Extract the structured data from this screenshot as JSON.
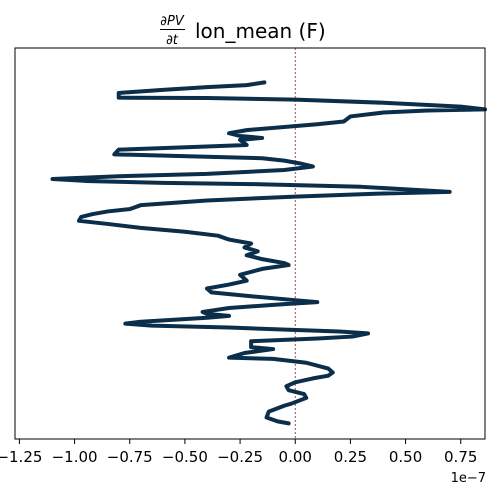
{
  "chart_data": {
    "type": "line",
    "title": {
      "fraction_numerator": "∂PV",
      "fraction_denominator": "∂t",
      "text": "lon_mean (F)"
    },
    "xlabel": "",
    "ylabel": "",
    "x_offset_label": "1e−7",
    "xlim": [
      -1.27,
      0.86
    ],
    "ylim": [
      0,
      1
    ],
    "x_ticks": [
      -1.25,
      -1.0,
      -0.75,
      -0.5,
      -0.25,
      0.0,
      0.25,
      0.5,
      0.75
    ],
    "x_tick_labels": [
      "−1.25",
      "−1.00",
      "−0.75",
      "−0.50",
      "−0.25",
      "0.00",
      "0.25",
      "0.50",
      "0.75"
    ],
    "y_ticks_visible": false,
    "reference_line": {
      "x": 0.0,
      "color": "#8b1a3c",
      "style": "dashed"
    },
    "series": [
      {
        "color": "#0b2e4a",
        "points": [
          {
            "x": -0.03,
            "y": 0.04
          },
          {
            "x": -0.08,
            "y": 0.045
          },
          {
            "x": -0.13,
            "y": 0.055
          },
          {
            "x": -0.12,
            "y": 0.07
          },
          {
            "x": -0.05,
            "y": 0.085
          },
          {
            "x": -0.02,
            "y": 0.09
          },
          {
            "x": 0.05,
            "y": 0.105
          },
          {
            "x": 0.04,
            "y": 0.115
          },
          {
            "x": -0.03,
            "y": 0.125
          },
          {
            "x": -0.04,
            "y": 0.135
          },
          {
            "x": 0.0,
            "y": 0.145
          },
          {
            "x": 0.08,
            "y": 0.155
          },
          {
            "x": 0.15,
            "y": 0.162
          },
          {
            "x": 0.17,
            "y": 0.17
          },
          {
            "x": 0.15,
            "y": 0.18
          },
          {
            "x": 0.05,
            "y": 0.195
          },
          {
            "x": -0.1,
            "y": 0.205
          },
          {
            "x": -0.3,
            "y": 0.208
          },
          {
            "x": -0.23,
            "y": 0.22
          },
          {
            "x": -0.1,
            "y": 0.23
          },
          {
            "x": -0.2,
            "y": 0.235
          },
          {
            "x": -0.2,
            "y": 0.25
          },
          {
            "x": 0.1,
            "y": 0.257
          },
          {
            "x": 0.26,
            "y": 0.262
          },
          {
            "x": 0.33,
            "y": 0.27
          },
          {
            "x": 0.2,
            "y": 0.275
          },
          {
            "x": -0.3,
            "y": 0.285
          },
          {
            "x": -0.65,
            "y": 0.29
          },
          {
            "x": -0.77,
            "y": 0.295
          },
          {
            "x": -0.7,
            "y": 0.3
          },
          {
            "x": -0.55,
            "y": 0.305
          },
          {
            "x": -0.4,
            "y": 0.31
          },
          {
            "x": -0.3,
            "y": 0.315
          },
          {
            "x": -0.4,
            "y": 0.32
          },
          {
            "x": -0.42,
            "y": 0.325
          },
          {
            "x": -0.3,
            "y": 0.335
          },
          {
            "x": -0.05,
            "y": 0.345
          },
          {
            "x": 0.1,
            "y": 0.35
          },
          {
            "x": 0.0,
            "y": 0.355
          },
          {
            "x": -0.2,
            "y": 0.365
          },
          {
            "x": -0.38,
            "y": 0.375
          },
          {
            "x": -0.4,
            "y": 0.385
          },
          {
            "x": -0.3,
            "y": 0.395
          },
          {
            "x": -0.22,
            "y": 0.405
          },
          {
            "x": -0.25,
            "y": 0.42
          },
          {
            "x": -0.15,
            "y": 0.435
          },
          {
            "x": -0.03,
            "y": 0.445
          },
          {
            "x": -0.05,
            "y": 0.45
          },
          {
            "x": -0.15,
            "y": 0.46
          },
          {
            "x": -0.22,
            "y": 0.47
          },
          {
            "x": -0.17,
            "y": 0.48
          },
          {
            "x": -0.23,
            "y": 0.49
          },
          {
            "x": -0.2,
            "y": 0.5
          },
          {
            "x": -0.3,
            "y": 0.51
          },
          {
            "x": -0.35,
            "y": 0.52
          },
          {
            "x": -0.5,
            "y": 0.53
          },
          {
            "x": -0.7,
            "y": 0.54
          },
          {
            "x": -0.85,
            "y": 0.55
          },
          {
            "x": -0.98,
            "y": 0.558
          },
          {
            "x": -0.97,
            "y": 0.568
          },
          {
            "x": -0.92,
            "y": 0.575
          },
          {
            "x": -0.85,
            "y": 0.582
          },
          {
            "x": -0.75,
            "y": 0.588
          },
          {
            "x": -0.7,
            "y": 0.598
          },
          {
            "x": -0.4,
            "y": 0.61
          },
          {
            "x": 0.0,
            "y": 0.62
          },
          {
            "x": 0.4,
            "y": 0.628
          },
          {
            "x": 0.7,
            "y": 0.632
          },
          {
            "x": 0.3,
            "y": 0.645
          },
          {
            "x": -0.2,
            "y": 0.652
          },
          {
            "x": -0.6,
            "y": 0.655
          },
          {
            "x": -0.95,
            "y": 0.66
          },
          {
            "x": -1.1,
            "y": 0.665
          },
          {
            "x": -0.8,
            "y": 0.672
          },
          {
            "x": -0.4,
            "y": 0.678
          },
          {
            "x": -0.05,
            "y": 0.688
          },
          {
            "x": 0.08,
            "y": 0.697
          },
          {
            "x": 0.02,
            "y": 0.705
          },
          {
            "x": -0.05,
            "y": 0.712
          },
          {
            "x": -0.15,
            "y": 0.718
          },
          {
            "x": -0.4,
            "y": 0.722
          },
          {
            "x": -0.82,
            "y": 0.728
          },
          {
            "x": -0.8,
            "y": 0.74
          },
          {
            "x": -0.4,
            "y": 0.748
          },
          {
            "x": -0.22,
            "y": 0.752
          },
          {
            "x": -0.25,
            "y": 0.765
          },
          {
            "x": -0.15,
            "y": 0.77
          },
          {
            "x": -0.25,
            "y": 0.775
          },
          {
            "x": -0.3,
            "y": 0.782
          },
          {
            "x": -0.22,
            "y": 0.79
          },
          {
            "x": 0.1,
            "y": 0.805
          },
          {
            "x": 0.22,
            "y": 0.812
          },
          {
            "x": 0.25,
            "y": 0.825
          },
          {
            "x": 0.4,
            "y": 0.835
          },
          {
            "x": 0.6,
            "y": 0.84
          },
          {
            "x": 0.86,
            "y": 0.843
          },
          {
            "x": 0.75,
            "y": 0.85
          },
          {
            "x": 0.4,
            "y": 0.86
          },
          {
            "x": 0.0,
            "y": 0.868
          },
          {
            "x": -0.4,
            "y": 0.872
          },
          {
            "x": -0.8,
            "y": 0.873
          },
          {
            "x": -0.8,
            "y": 0.885
          },
          {
            "x": -0.6,
            "y": 0.893
          },
          {
            "x": -0.4,
            "y": 0.9
          },
          {
            "x": -0.22,
            "y": 0.905
          },
          {
            "x": -0.14,
            "y": 0.912
          }
        ]
      }
    ]
  }
}
